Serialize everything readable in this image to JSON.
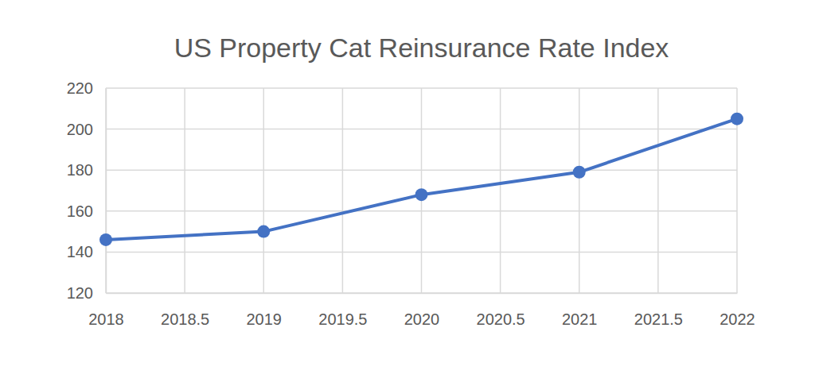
{
  "chart_data": {
    "type": "line",
    "title": "US Property Cat Reinsurance Rate Index",
    "x": [
      2018,
      2019,
      2020,
      2021,
      2022
    ],
    "values": [
      146,
      150,
      168,
      179,
      205
    ],
    "color": "#4472c4",
    "marker": "circle",
    "xlim": [
      2018,
      2022
    ],
    "xticks": [
      2018,
      2018.5,
      2019,
      2019.5,
      2020,
      2020.5,
      2021,
      2021.5,
      2022
    ],
    "ylim": [
      120,
      220
    ],
    "yticks": [
      120,
      140,
      160,
      180,
      200,
      220
    ],
    "grid": true
  }
}
